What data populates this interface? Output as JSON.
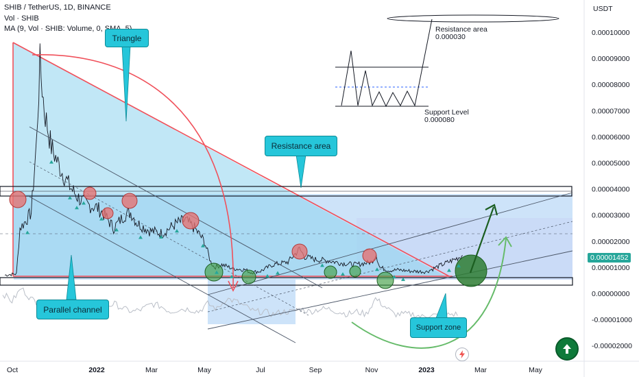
{
  "header": {
    "title": "SHIB / TetherUS, 1D, BINANCE",
    "vol_label": "Vol · SHIB",
    "ma_label": "MA (9, Vol · SHIB: Volume, 0, SMA, 5)"
  },
  "annotations": {
    "triangle": "Triangle",
    "resistance_area_box": "Resistance area",
    "parallel_channel": "Parallel channel",
    "support_zone": "Support zone",
    "resistance_text_1": "Resistance area",
    "resistance_text_2": "0.000030",
    "support_text_1": "Support Level",
    "support_text_2": "0.000080"
  },
  "colors": {
    "up": "#26a69a",
    "down": "#ef5350",
    "triangle_fill": "#8ed3ee",
    "triangle_line": "#f0505a",
    "zone_fill": "#bcd9f7",
    "callout": "#26c6da",
    "green_circle": "#2e7d32",
    "red_circle": "#e57373"
  },
  "chart_data": {
    "type": "line",
    "currency_label": "USDT",
    "current_price_label": "0.00001452",
    "y_ticks": [
      "0.00010000",
      "0.00009000",
      "0.00008000",
      "0.00007000",
      "0.00006000",
      "0.00005000",
      "0.00004000",
      "0.00003000",
      "0.00002000",
      "0.00001000",
      "0.00000000",
      "-0.00001000",
      "-0.00002000"
    ],
    "x_ticks": [
      "Oct",
      "2022",
      "Mar",
      "May",
      "Jul",
      "Sep",
      "Nov",
      "2023",
      "Mar",
      "May"
    ],
    "ylim": [
      -2.2e-05,
      0.000105
    ],
    "series": [
      {
        "x": [
          "2021-09-20",
          "2021-10-01",
          "2021-10-05",
          "2021-10-10",
          "2021-10-18",
          "2021-10-24",
          "2021-10-28",
          "2021-11-02",
          "2021-11-10",
          "2021-11-20",
          "2021-12-01",
          "2021-12-10",
          "2021-12-20",
          "2022-01-01",
          "2022-01-10",
          "2022-01-20",
          "2022-02-01",
          "2022-02-08",
          "2022-02-15",
          "2022-03-01",
          "2022-03-15",
          "2022-04-01",
          "2022-04-10",
          "2022-04-20",
          "2022-05-01",
          "2022-05-08",
          "2022-05-12",
          "2022-05-20",
          "2022-06-01",
          "2022-06-15",
          "2022-06-20",
          "2022-07-01",
          "2022-07-15",
          "2022-08-01",
          "2022-08-14",
          "2022-08-20",
          "2022-09-01",
          "2022-09-15",
          "2022-10-01",
          "2022-10-15",
          "2022-11-01",
          "2022-11-06",
          "2022-11-10",
          "2022-11-20",
          "2022-12-01",
          "2022-12-15",
          "2023-01-01",
          "2023-01-15",
          "2023-02-01",
          "2023-02-10"
        ],
        "values": [
          7e-06,
          7.5e-06,
          2.5e-05,
          2.7e-05,
          3.1e-05,
          5.8e-05,
          8.8e-05,
          7e-05,
          5.6e-05,
          4.8e-05,
          4.1e-05,
          3.7e-05,
          3.4e-05,
          3.3e-05,
          3e-05,
          2.5e-05,
          3e-05,
          3.1e-05,
          2.7e-05,
          2.4e-05,
          2.3e-05,
          2.7e-05,
          2.8e-05,
          2.5e-05,
          2e-05,
          1.2e-05,
          1e-05,
          1.1e-05,
          9.5e-06,
          9e-06,
          8e-06,
          8.5e-06,
          1.1e-05,
          1.2e-05,
          1.7e-05,
          1.4e-05,
          1.3e-05,
          1.25e-05,
          1.15e-05,
          1.1e-05,
          1.2e-05,
          1.5e-05,
          1e-05,
          8.8e-06,
          9e-06,
          8.5e-06,
          8.3e-06,
          1.05e-05,
          1.3e-05,
          1.45e-05
        ]
      }
    ],
    "ma_volume": [
      0.0,
      -3e-06,
      2e-06,
      -2e-06,
      -4e-06,
      -5e-06,
      -5e-06,
      -4e-06,
      -5e-06,
      -6e-06,
      -7e-06,
      -5e-06,
      -4e-06,
      -6e-06,
      -7e-06,
      -6e-06,
      -4e-06,
      -5e-06,
      -7e-06,
      -6e-06,
      -6e-06,
      -7e-06,
      -4e-06,
      -6e-06,
      -2e-06,
      -3e-06,
      -5e-06,
      -7e-06,
      -7e-06,
      -8e-06,
      -7e-06,
      -7e-06,
      -6e-06,
      -7e-06,
      -6e-06,
      -6e-06,
      -7e-06,
      -8e-06,
      -7e-06,
      -8e-06,
      -2e-06,
      -5e-06,
      -8e-06,
      -8e-06,
      -8e-06,
      -9e-06,
      -8e-06,
      -9e-06,
      -8e-06,
      -8e-06
    ]
  }
}
